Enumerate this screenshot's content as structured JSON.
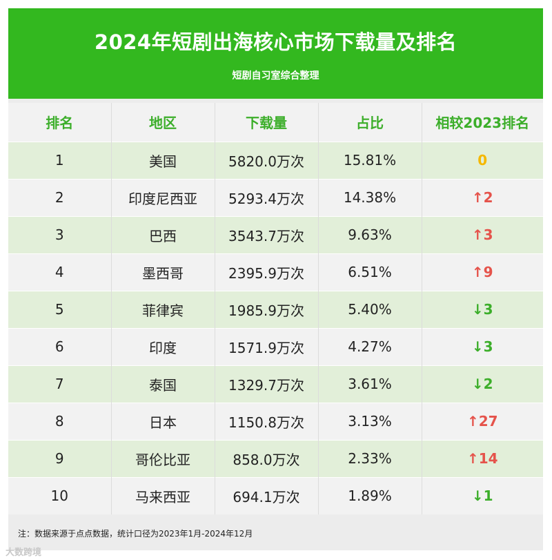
{
  "title": "2024年短剧出海核心市场下载量及排名",
  "subtitle": "短剧自习室综合整理",
  "columns": [
    "排名",
    "地区",
    "下载量",
    "占比",
    "相较2023排名"
  ],
  "rows": [
    {
      "rank": "1",
      "region": "美国",
      "downloads": "5820.0万次",
      "share": "15.81%",
      "change": "0",
      "trend": "same"
    },
    {
      "rank": "2",
      "region": "印度尼西亚",
      "downloads": "5293.4万次",
      "share": "14.38%",
      "change": "↑2",
      "trend": "up"
    },
    {
      "rank": "3",
      "region": "巴西",
      "downloads": "3543.7万次",
      "share": "9.63%",
      "change": "↑3",
      "trend": "up"
    },
    {
      "rank": "4",
      "region": "墨西哥",
      "downloads": "2395.9万次",
      "share": "6.51%",
      "change": "↑9",
      "trend": "up"
    },
    {
      "rank": "5",
      "region": "菲律宾",
      "downloads": "1985.9万次",
      "share": "5.40%",
      "change": "↓3",
      "trend": "down"
    },
    {
      "rank": "6",
      "region": "印度",
      "downloads": "1571.9万次",
      "share": "4.27%",
      "change": "↓3",
      "trend": "down"
    },
    {
      "rank": "7",
      "region": "泰国",
      "downloads": "1329.7万次",
      "share": "3.61%",
      "change": "↓2",
      "trend": "down"
    },
    {
      "rank": "8",
      "region": "日本",
      "downloads": "1150.8万次",
      "share": "3.13%",
      "change": "↑27",
      "trend": "up"
    },
    {
      "rank": "9",
      "region": "哥伦比亚",
      "downloads": "858.0万次",
      "share": "2.33%",
      "change": "↑14",
      "trend": "up"
    },
    {
      "rank": "10",
      "region": "马来西亚",
      "downloads": "694.1万次",
      "share": "1.89%",
      "change": "↓1",
      "trend": "down"
    }
  ],
  "note": "注：数据来源于点点数据，统计口径为2023年1月-2024年12月",
  "watermark": "大数跨境",
  "colors": {
    "header_green": "#33b81f",
    "up": "#e5534b",
    "down": "#3cae2a",
    "same": "#f5b800"
  }
}
